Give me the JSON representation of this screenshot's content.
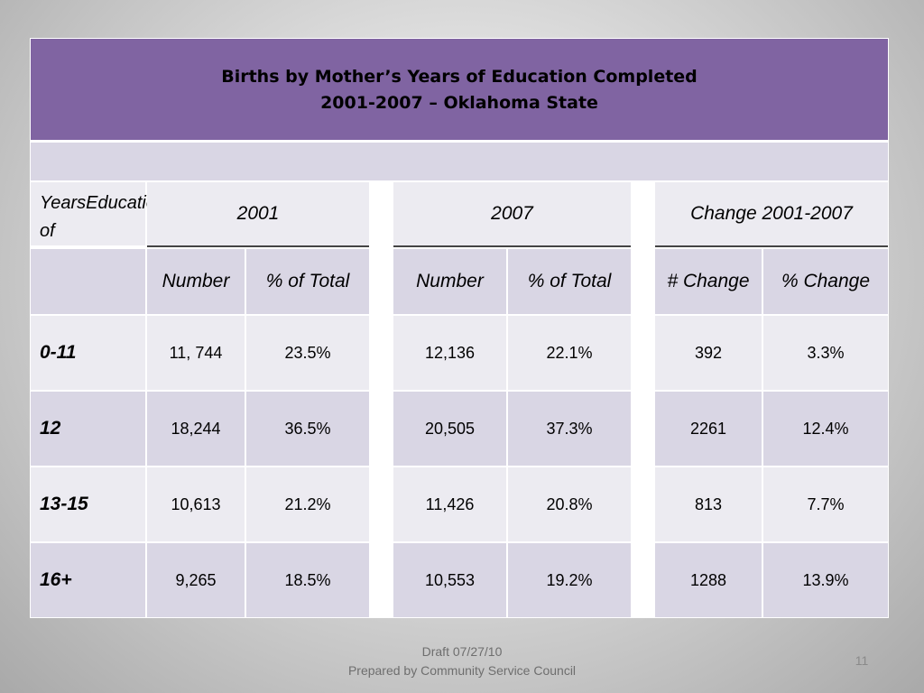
{
  "title": {
    "line1": "Births by  Mother’s Years of Education Completed",
    "line2": "2001-2007 – Oklahoma State"
  },
  "header": {
    "corner_line1": "Years of",
    "corner_line2": "Education",
    "group_2001": "2001",
    "group_2007": "2007",
    "group_change": "Change 2001-2007"
  },
  "subheader": {
    "number_2001": "Number",
    "pct_2001": "% of Total",
    "number_2007": "Number",
    "pct_2007": "% of Total",
    "num_change": "# Change",
    "pct_change": "% Change"
  },
  "rows": [
    {
      "label": "0-11",
      "n2001": "11, 744",
      "p2001": "23.5%",
      "n2007": "12,136",
      "p2007": "22.1%",
      "nchange": "392",
      "pchange": "3.3%"
    },
    {
      "label": "12",
      "n2001": "18,244",
      "p2001": "36.5%",
      "n2007": "20,505",
      "p2007": "37.3%",
      "nchange": "2261",
      "pchange": "12.4%"
    },
    {
      "label": "13-15",
      "n2001": "10,613",
      "p2001": "21.2%",
      "n2007": "11,426",
      "p2007": "20.8%",
      "nchange": "813",
      "pchange": "7.7%"
    },
    {
      "label": "16+",
      "n2001": "9,265",
      "p2001": "18.5%",
      "n2007": "10,553",
      "p2007": "19.2%",
      "nchange": "1288",
      "pchange": "13.9%"
    }
  ],
  "footer": {
    "draft": "Draft 07/27/10",
    "prepared": "Prepared by Community Service Council",
    "page_number": "11"
  },
  "colors": {
    "title_band": "#8064a2",
    "light_cell": "#ecebf1",
    "dark_cell": "#d9d6e4"
  }
}
